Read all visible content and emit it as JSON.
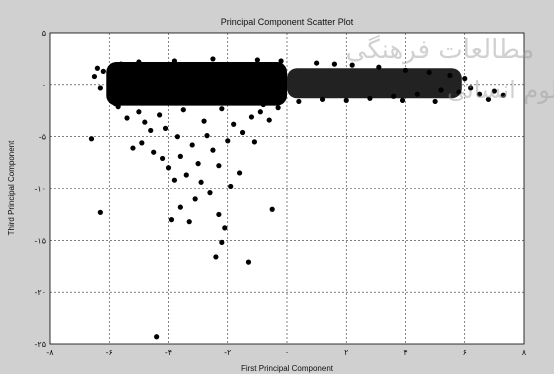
{
  "watermark": {
    "line1": "مطالعات فرهنگی",
    "line2": "علوم انسانی"
  },
  "chart_data": {
    "type": "scatter",
    "title": "Principal Component Scatter Plot",
    "xlabel": "First Principal Component",
    "ylabel": "Third Principal Component",
    "xlim": [
      -8,
      8
    ],
    "ylim": [
      -25,
      5
    ],
    "grid": true,
    "x_ticks": [
      {
        "value": -8,
        "label": "-۸"
      },
      {
        "value": -6,
        "label": "-۶"
      },
      {
        "value": -4,
        "label": "-۴"
      },
      {
        "value": -2,
        "label": "-۲"
      },
      {
        "value": 0,
        "label": "۰"
      },
      {
        "value": 2,
        "label": "۲"
      },
      {
        "value": 4,
        "label": "۴"
      },
      {
        "value": 6,
        "label": "۶"
      },
      {
        "value": 8,
        "label": "۸"
      }
    ],
    "y_ticks": [
      {
        "value": 5,
        "label": "۵"
      },
      {
        "value": 0,
        "label": "۰"
      },
      {
        "value": -5,
        "label": "-۵"
      },
      {
        "value": -10,
        "label": "-۱۰"
      },
      {
        "value": -15,
        "label": "-۱۵"
      },
      {
        "value": -20,
        "label": "-۲۰"
      },
      {
        "value": -25,
        "label": "-۲۵"
      }
    ],
    "dense_cluster": [
      {
        "x0": -6.1,
        "x1": 0.0,
        "y_top": 2.2,
        "y_bottom": -2.0,
        "color": "#000000"
      },
      {
        "x0": 0.0,
        "x1": 5.9,
        "y_top": 1.6,
        "y_bottom": -1.3,
        "color": "#222222"
      }
    ],
    "points": [
      [
        -6.4,
        1.6
      ],
      [
        -6.5,
        0.8
      ],
      [
        -6.3,
        -0.3
      ],
      [
        -6.0,
        -1.2
      ],
      [
        -5.8,
        -1.8
      ],
      [
        -6.6,
        -5.2
      ],
      [
        -6.3,
        -12.3
      ],
      [
        -5.7,
        -2.1
      ],
      [
        -5.4,
        -3.2
      ],
      [
        -5.2,
        -6.1
      ],
      [
        -4.9,
        -5.6
      ],
      [
        -4.8,
        -3.6
      ],
      [
        -4.5,
        -6.5
      ],
      [
        -4.2,
        -7.1
      ],
      [
        -4.6,
        -4.4
      ],
      [
        -4.0,
        -8.0
      ],
      [
        -3.8,
        -9.2
      ],
      [
        -3.6,
        -6.9
      ],
      [
        -3.4,
        -8.7
      ],
      [
        -3.2,
        -5.8
      ],
      [
        -3.0,
        -7.6
      ],
      [
        -2.9,
        -9.4
      ],
      [
        -2.7,
        -4.9
      ],
      [
        -2.5,
        -6.3
      ],
      [
        -2.3,
        -7.8
      ],
      [
        -2.0,
        -5.4
      ],
      [
        -1.8,
        -3.8
      ],
      [
        -1.5,
        -4.6
      ],
      [
        -1.2,
        -3.1
      ],
      [
        -0.9,
        -2.6
      ],
      [
        -0.6,
        -3.4
      ],
      [
        -3.6,
        -11.8
      ],
      [
        -3.9,
        -13.0
      ],
      [
        -3.3,
        -13.2
      ],
      [
        -2.3,
        -12.5
      ],
      [
        -2.1,
        -13.8
      ],
      [
        -2.2,
        -15.2
      ],
      [
        -2.4,
        -16.6
      ],
      [
        -1.3,
        -17.1
      ],
      [
        -0.5,
        -12.0
      ],
      [
        -4.4,
        -24.3
      ],
      [
        -3.1,
        -11.0
      ],
      [
        -2.6,
        -10.4
      ],
      [
        -1.9,
        -9.8
      ],
      [
        -1.6,
        -8.5
      ],
      [
        -3.7,
        -5.0
      ],
      [
        -4.1,
        -4.2
      ],
      [
        -2.8,
        -3.5
      ],
      [
        -1.1,
        -5.5
      ],
      [
        -0.3,
        -2.2
      ],
      [
        -5.0,
        -2.6
      ],
      [
        -4.3,
        -2.9
      ],
      [
        -3.5,
        -2.4
      ],
      [
        -2.2,
        -2.3
      ],
      [
        -0.8,
        -1.9
      ],
      [
        0.4,
        -1.6
      ],
      [
        1.2,
        -1.4
      ],
      [
        2.0,
        -1.5
      ],
      [
        2.8,
        -1.3
      ],
      [
        3.6,
        -1.1
      ],
      [
        4.4,
        -0.9
      ],
      [
        5.2,
        -0.5
      ],
      [
        5.8,
        -0.7
      ],
      [
        6.2,
        -0.3
      ],
      [
        6.5,
        -0.9
      ],
      [
        6.8,
        -1.4
      ],
      [
        7.0,
        -0.6
      ],
      [
        7.3,
        -1.0
      ],
      [
        6.0,
        0.6
      ],
      [
        5.5,
        0.9
      ],
      [
        4.8,
        1.2
      ],
      [
        4.0,
        1.4
      ],
      [
        3.1,
        1.7
      ],
      [
        2.2,
        1.9
      ],
      [
        1.0,
        2.1
      ],
      [
        -1.0,
        2.4
      ],
      [
        -2.5,
        2.5
      ],
      [
        -3.8,
        2.3
      ],
      [
        -5.0,
        2.2
      ],
      [
        -5.6,
        2.0
      ],
      [
        -6.2,
        1.3
      ],
      [
        -0.2,
        2.3
      ],
      [
        1.6,
        2.0
      ],
      [
        3.9,
        -1.5
      ],
      [
        5.0,
        -1.6
      ]
    ],
    "series": [
      {
        "color": "#000000",
        "marker": "circle"
      }
    ]
  }
}
